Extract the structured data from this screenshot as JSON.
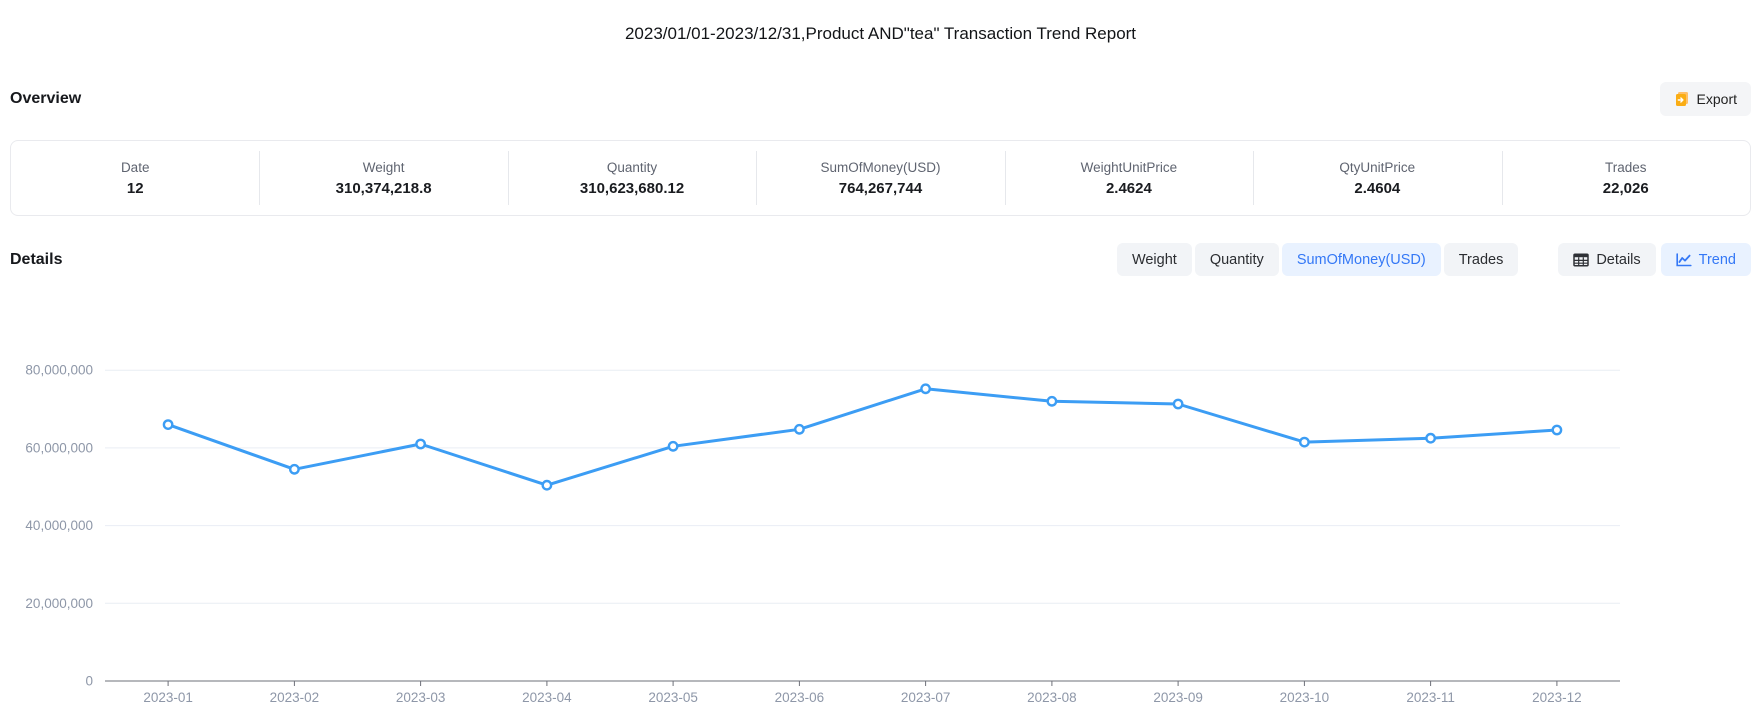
{
  "title": "2023/01/01-2023/12/31,Product AND\"tea\" Transaction Trend Report",
  "overview": {
    "heading": "Overview",
    "export_label": "Export",
    "stats": [
      {
        "label": "Date",
        "value": "12"
      },
      {
        "label": "Weight",
        "value": "310,374,218.8"
      },
      {
        "label": "Quantity",
        "value": "310,623,680.12"
      },
      {
        "label": "SumOfMoney(USD)",
        "value": "764,267,744"
      },
      {
        "label": "WeightUnitPrice",
        "value": "2.4624"
      },
      {
        "label": "QtyUnitPrice",
        "value": "2.4604"
      },
      {
        "label": "Trades",
        "value": "22,026"
      }
    ]
  },
  "details": {
    "heading": "Details",
    "metric_tabs": [
      {
        "label": "Weight",
        "selected": false
      },
      {
        "label": "Quantity",
        "selected": false
      },
      {
        "label": "SumOfMoney(USD)",
        "selected": true
      },
      {
        "label": "Trades",
        "selected": false
      }
    ],
    "view_tabs": [
      {
        "label": "Details",
        "icon": "table-icon",
        "selected": false
      },
      {
        "label": "Trend",
        "icon": "line-chart-icon",
        "selected": true
      }
    ]
  },
  "colors": {
    "accent_blue": "#3478f6",
    "line_blue": "#3c9df4",
    "selected_tab_bg": "#e9f2ff",
    "tab_bg": "#f2f4f7",
    "export_icon_orange": "#faad14",
    "axis_label_gray": "#8e97a8",
    "gridline_gray": "#e9edf4"
  },
  "chart_data": {
    "type": "line",
    "title": "",
    "xlabel": "",
    "ylabel": "",
    "x": [
      "2023-01",
      "2023-02",
      "2023-03",
      "2023-04",
      "2023-05",
      "2023-06",
      "2023-07",
      "2023-08",
      "2023-09",
      "2023-10",
      "2023-11",
      "2023-12"
    ],
    "series": [
      {
        "name": "SumOfMoney(USD)",
        "values": [
          66000000,
          54500000,
          61000000,
          50400000,
          60400000,
          64800000,
          75200000,
          72000000,
          71300000,
          61500000,
          62500000,
          64600000
        ]
      }
    ],
    "ylim": [
      0,
      80000000
    ],
    "ytick_interval": 20000000,
    "grid": true,
    "legend": false,
    "marker": "hollow-circle"
  }
}
